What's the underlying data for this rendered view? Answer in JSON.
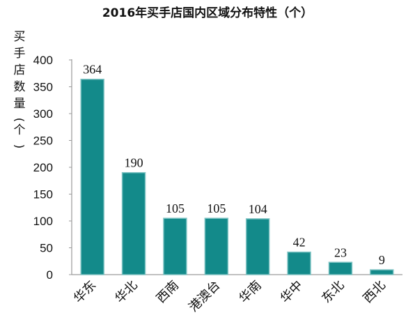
{
  "chart_data": {
    "type": "bar",
    "title": "2016年买手店国内区域分布特性（个）",
    "ylabel": "买手店数量(个)",
    "xlabel": "",
    "categories": [
      "华东",
      "华北",
      "西南",
      "港澳台",
      "华南",
      "华中",
      "东北",
      "西北"
    ],
    "values": [
      364,
      190,
      105,
      105,
      104,
      42,
      23,
      9
    ],
    "data_labels": [
      "364",
      "190",
      "105",
      "105",
      "104",
      "42",
      "23",
      "9"
    ],
    "ylim": [
      0,
      400
    ],
    "yticks": [
      "0",
      "50",
      "100",
      "150",
      "200",
      "250",
      "300",
      "350",
      "400"
    ],
    "grid": false,
    "bar_color": "#138a8a",
    "bar_edge_color": "#7ec3c3"
  }
}
